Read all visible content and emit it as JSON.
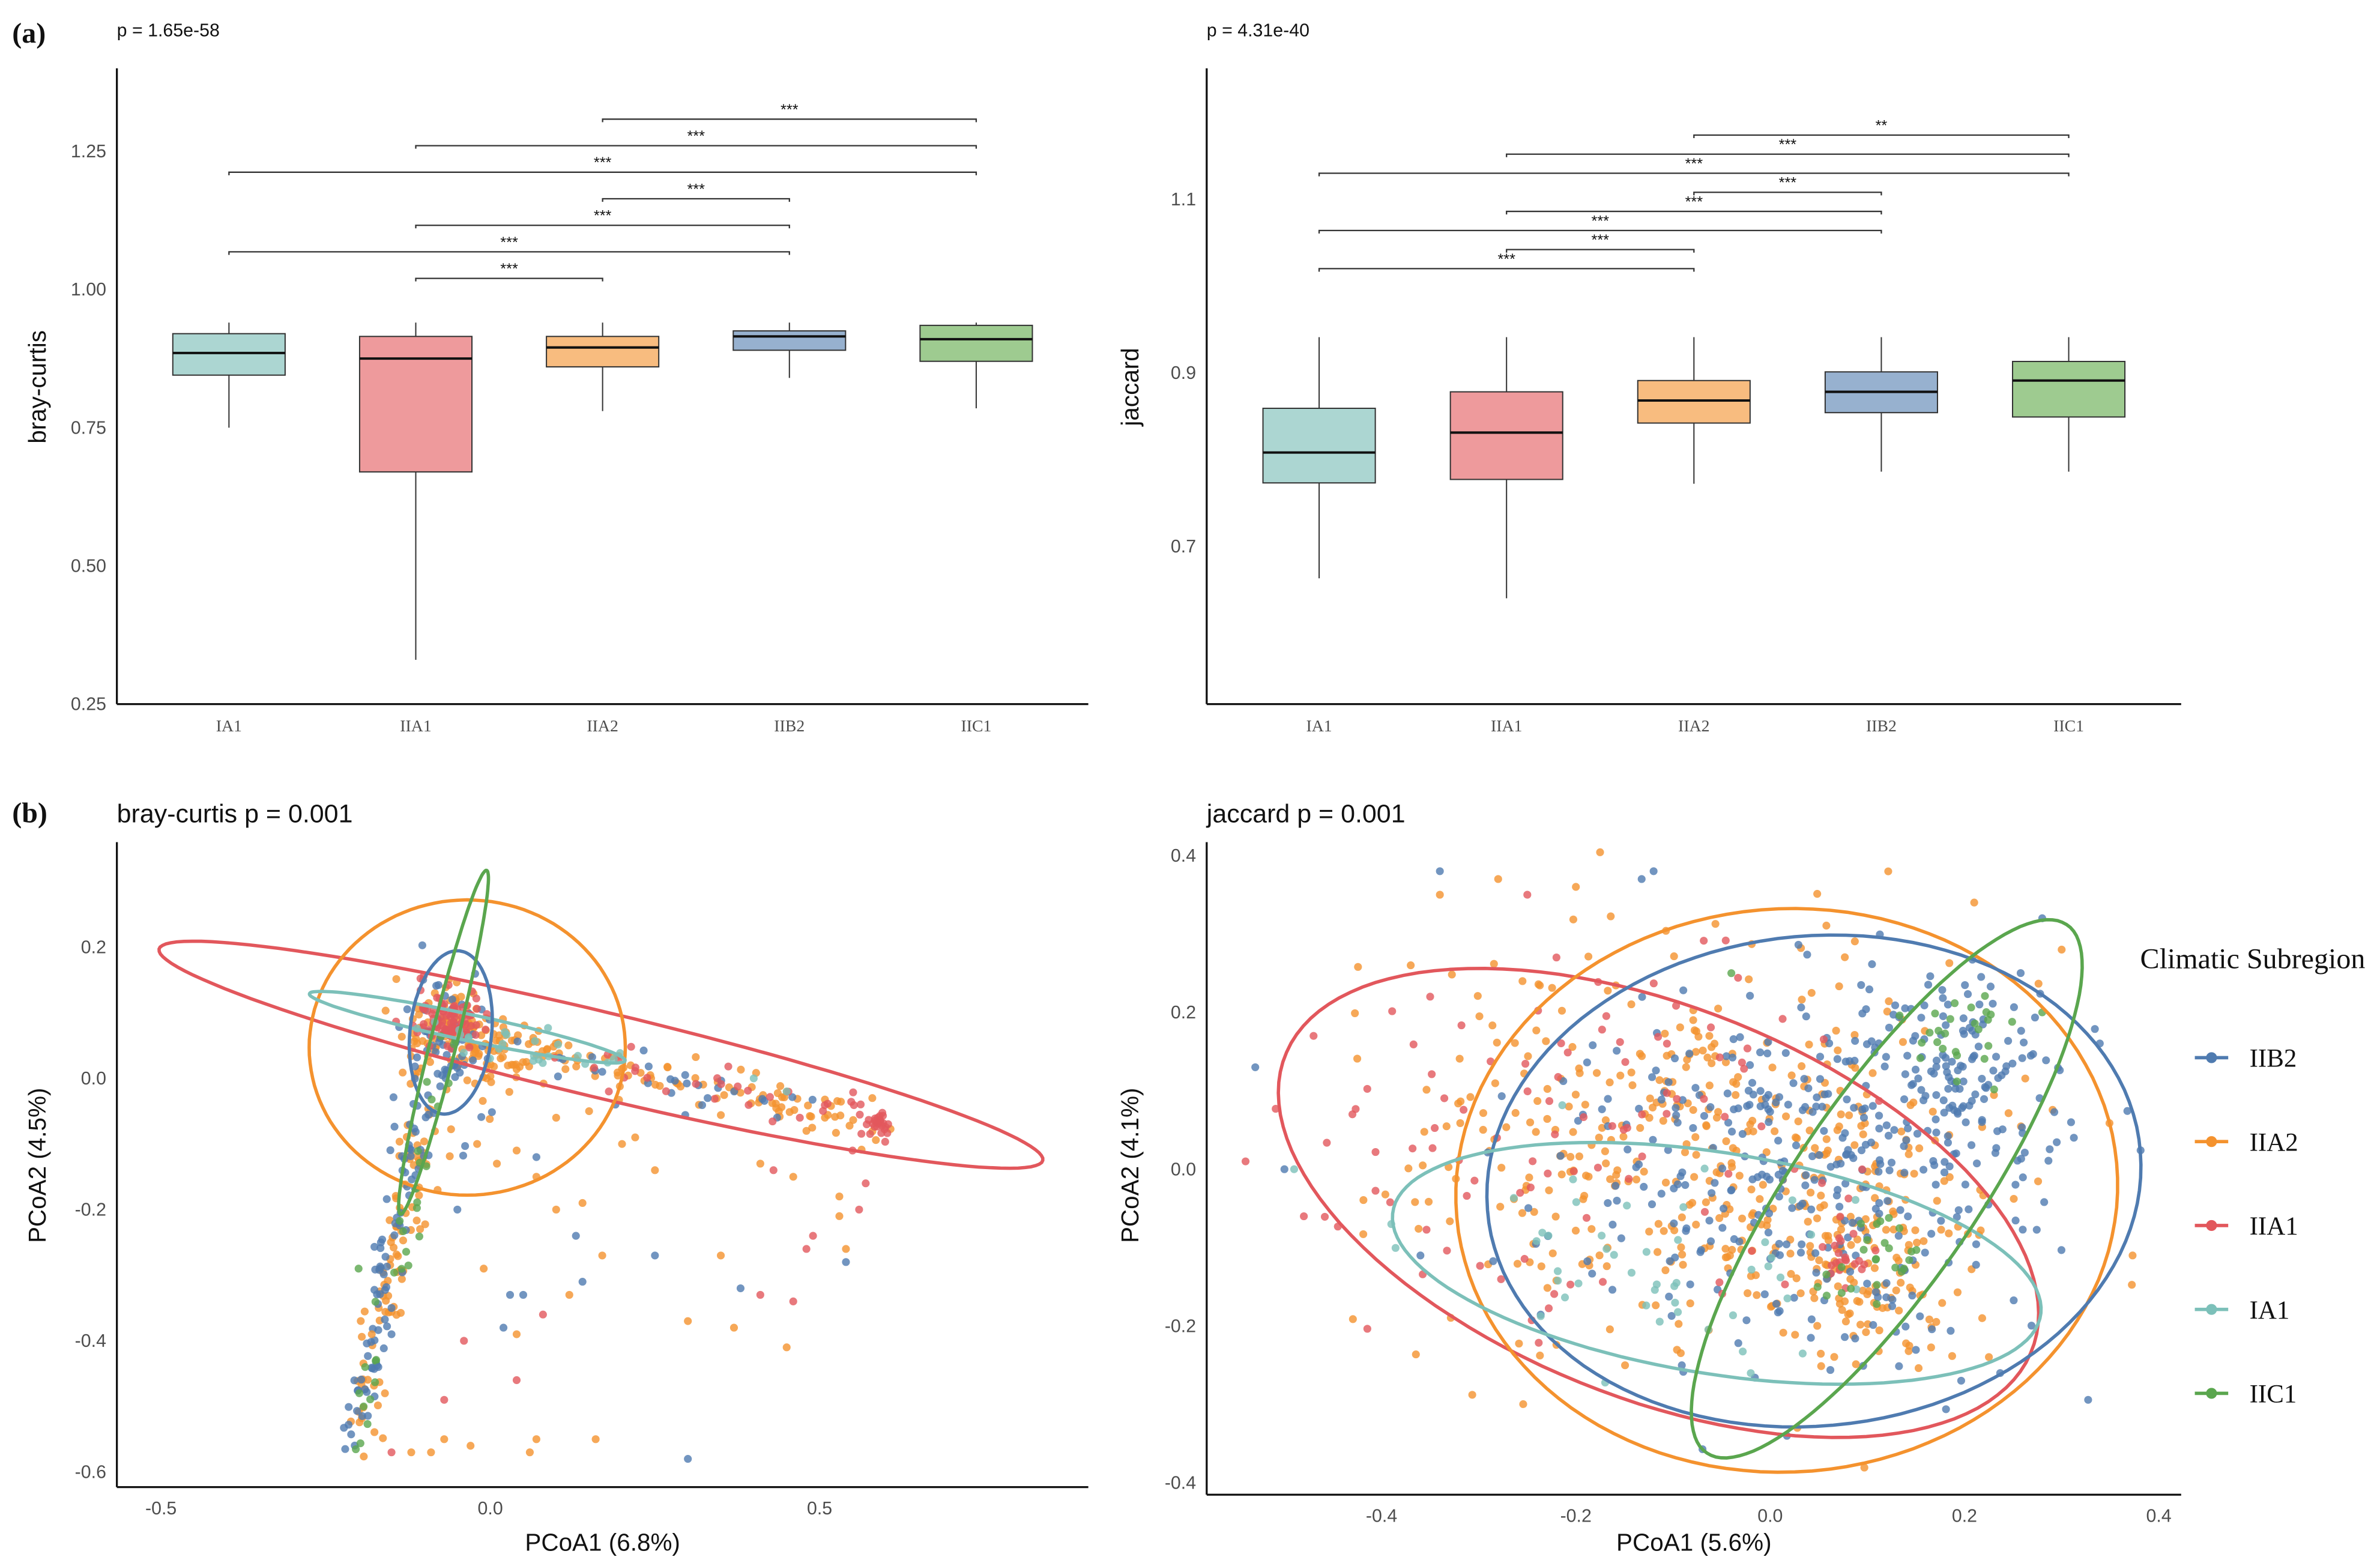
{
  "panels": {
    "a": "(a)",
    "b": "(b)"
  },
  "colors": {
    "IIB2": "#4f7bb0",
    "IIA2": "#f4922e",
    "IIA1": "#e2575c",
    "IA1": "#7cc0b9",
    "IIC1": "#5aa64e"
  },
  "box_fills": {
    "IA1": "#acd6d2",
    "IIA1": "#ee9a9c",
    "IIA2": "#f8bc7f",
    "IIB2": "#97b1cf",
    "IIC1": "#9ecb90"
  },
  "legend": {
    "title": "Climatic Subregion",
    "items": [
      "IIB2",
      "IIA2",
      "IIA1",
      "IA1",
      "IIC1"
    ]
  },
  "chart_data": [
    {
      "type": "box",
      "title": "p = 1.65e-58",
      "ylabel": "bray-curtis",
      "xlabel": "",
      "ylim": [
        0.25,
        1.4
      ],
      "yticks": [
        0.25,
        0.5,
        0.75,
        1.0,
        1.25
      ],
      "ytick_labels": [
        "0.25",
        "0.50",
        "0.75",
        "1.00",
        "1.25"
      ],
      "categories": [
        "IA1",
        "IIA1",
        "IIA2",
        "IIB2",
        "IIC1"
      ],
      "boxes": [
        {
          "group": "IA1",
          "low": 0.75,
          "q1": 0.845,
          "median": 0.885,
          "q3": 0.92,
          "high": 0.94
        },
        {
          "group": "IIA1",
          "low": 0.33,
          "q1": 0.67,
          "median": 0.875,
          "q3": 0.915,
          "high": 0.94
        },
        {
          "group": "IIA2",
          "low": 0.78,
          "q1": 0.86,
          "median": 0.895,
          "q3": 0.915,
          "high": 0.94
        },
        {
          "group": "IIB2",
          "low": 0.84,
          "q1": 0.89,
          "median": 0.915,
          "q3": 0.925,
          "high": 0.94
        },
        {
          "group": "IIC1",
          "low": 0.785,
          "q1": 0.87,
          "median": 0.91,
          "q3": 0.935,
          "high": 0.94
        }
      ],
      "comparisons": [
        {
          "from": "IIA1",
          "to": "IIA2",
          "y": 1.02,
          "label": "***"
        },
        {
          "from": "IA1",
          "to": "IIB2",
          "y": 1.068,
          "label": "***"
        },
        {
          "from": "IIA1",
          "to": "IIB2",
          "y": 1.116,
          "label": "***"
        },
        {
          "from": "IIA2",
          "to": "IIB2",
          "y": 1.164,
          "label": "***"
        },
        {
          "from": "IA1",
          "to": "IIC1",
          "y": 1.212,
          "label": "***"
        },
        {
          "from": "IIA1",
          "to": "IIC1",
          "y": 1.26,
          "label": "***"
        },
        {
          "from": "IIA2",
          "to": "IIC1",
          "y": 1.308,
          "label": "***"
        }
      ]
    },
    {
      "type": "box",
      "title": "p = 4.31e-40",
      "ylabel": "jaccard",
      "xlabel": "",
      "ylim": [
        0.518,
        1.251
      ],
      "yticks": [
        0.7,
        0.9,
        1.1
      ],
      "ytick_labels": [
        "0.7",
        "0.9",
        "1.1"
      ],
      "categories": [
        "IA1",
        "IIA1",
        "IIA2",
        "IIB2",
        "IIC1"
      ],
      "boxes": [
        {
          "group": "IA1",
          "low": 0.663,
          "q1": 0.773,
          "median": 0.808,
          "q3": 0.859,
          "high": 0.941
        },
        {
          "group": "IIA1",
          "low": 0.64,
          "q1": 0.777,
          "median": 0.831,
          "q3": 0.878,
          "high": 0.941
        },
        {
          "group": "IIA2",
          "low": 0.772,
          "q1": 0.842,
          "median": 0.868,
          "q3": 0.891,
          "high": 0.941
        },
        {
          "group": "IIB2",
          "low": 0.786,
          "q1": 0.854,
          "median": 0.878,
          "q3": 0.901,
          "high": 0.941
        },
        {
          "group": "IIC1",
          "low": 0.786,
          "q1": 0.849,
          "median": 0.891,
          "q3": 0.913,
          "high": 0.941
        }
      ],
      "comparisons": [
        {
          "from": "IA1",
          "to": "IIA2",
          "y": 1.02,
          "label": "***"
        },
        {
          "from": "IIA1",
          "to": "IIA2",
          "y": 1.042,
          "label": "***"
        },
        {
          "from": "IA1",
          "to": "IIB2",
          "y": 1.064,
          "label": "***"
        },
        {
          "from": "IIA1",
          "to": "IIB2",
          "y": 1.086,
          "label": "***"
        },
        {
          "from": "IIA2",
          "to": "IIB2",
          "y": 1.108,
          "label": "***"
        },
        {
          "from": "IA1",
          "to": "IIC1",
          "y": 1.13,
          "label": "***"
        },
        {
          "from": "IIA1",
          "to": "IIC1",
          "y": 1.152,
          "label": "***"
        },
        {
          "from": "IIA2",
          "to": "IIC1",
          "y": 1.174,
          "label": "**"
        }
      ]
    },
    {
      "type": "scatter",
      "title": "bray-curtis p = 0.001",
      "xlabel": "PCoA1 (6.8%)",
      "ylabel": "PCoA2 (4.5%)",
      "xlim": [
        -0.567,
        0.908
      ],
      "ylim": [
        -0.623,
        0.36
      ],
      "xticks": [
        -0.5,
        0.0,
        0.5
      ],
      "xtick_labels": [
        "-0.5",
        "0.0",
        "0.5"
      ],
      "yticks": [
        -0.6,
        -0.4,
        -0.2,
        0.0,
        0.2
      ],
      "ytick_labels": [
        "-0.6",
        "-0.4",
        "-0.2",
        "0.0",
        "0.2"
      ],
      "ellipses": [
        {
          "group": "IIA1",
          "cx": 0.168,
          "cy": 0.036,
          "rx": 0.69,
          "ry": 0.065,
          "angle": -13.5
        },
        {
          "group": "IIA2",
          "cx": -0.035,
          "cy": 0.047,
          "rx": 0.24,
          "ry": 0.225,
          "angle": 0
        },
        {
          "group": "IA1",
          "cx": -0.035,
          "cy": 0.078,
          "rx": 0.245,
          "ry": 0.02,
          "angle": -12
        },
        {
          "group": "IIB2",
          "cx": -0.06,
          "cy": 0.07,
          "rx": 0.062,
          "ry": 0.125,
          "angle": -6
        },
        {
          "group": "IIC1",
          "cx": -0.071,
          "cy": 0.055,
          "rx": 0.27,
          "ry": 0.02,
          "angle": 76
        }
      ],
      "clusters": [
        {
          "group": "IIA2",
          "kind": "blob",
          "c": [
            -0.05,
            0.06
          ],
          "sd": [
            0.05,
            0.04
          ],
          "n": 130
        },
        {
          "group": "IIA2",
          "kind": "line",
          "from": [
            0.0,
            0.05
          ],
          "to": [
            0.58,
            -0.065
          ],
          "sd": 0.018,
          "n": 110
        },
        {
          "group": "IIA2",
          "kind": "line",
          "from": [
            -0.1,
            -0.05
          ],
          "to": [
            -0.2,
            -0.56
          ],
          "sd": 0.018,
          "n": 90
        },
        {
          "group": "IIB2",
          "kind": "blob",
          "c": [
            -0.07,
            0.05
          ],
          "sd": [
            0.03,
            0.05
          ],
          "n": 70
        },
        {
          "group": "IIB2",
          "kind": "line",
          "from": [
            -0.11,
            -0.05
          ],
          "to": [
            -0.21,
            -0.56
          ],
          "sd": 0.014,
          "n": 80
        },
        {
          "group": "IIB2",
          "kind": "line",
          "from": [
            0.0,
            0.05
          ],
          "to": [
            0.58,
            -0.07
          ],
          "sd": 0.015,
          "n": 25
        },
        {
          "group": "IIA1",
          "kind": "blob",
          "c": [
            -0.06,
            0.09
          ],
          "sd": [
            0.025,
            0.02
          ],
          "n": 90
        },
        {
          "group": "IIA1",
          "kind": "blob",
          "c": [
            0.59,
            -0.07
          ],
          "sd": [
            0.012,
            0.01
          ],
          "n": 25
        },
        {
          "group": "IIA1",
          "kind": "line",
          "from": [
            0.05,
            0.05
          ],
          "to": [
            0.58,
            -0.06
          ],
          "sd": 0.015,
          "n": 30
        },
        {
          "group": "IA1",
          "kind": "line",
          "from": [
            -0.1,
            0.08
          ],
          "to": [
            0.2,
            0.02
          ],
          "sd": 0.012,
          "n": 25
        },
        {
          "group": "IIC1",
          "kind": "line",
          "from": [
            -0.06,
            0.1
          ],
          "to": [
            -0.2,
            -0.55
          ],
          "sd": 0.012,
          "n": 30
        }
      ],
      "points": {
        "IIA2": [
          [
            0.04,
            -0.39
          ],
          [
            0.17,
            -0.27
          ],
          [
            0.16,
            -0.55
          ],
          [
            0.3,
            -0.37
          ],
          [
            0.35,
            -0.27
          ],
          [
            0.37,
            -0.38
          ],
          [
            0.45,
            -0.41
          ],
          [
            0.46,
            -0.15
          ],
          [
            0.54,
            -0.26
          ],
          [
            0.12,
            -0.33
          ],
          [
            -0.01,
            -0.29
          ],
          [
            0.07,
            -0.55
          ],
          [
            0.06,
            -0.57
          ],
          [
            -0.03,
            -0.56
          ],
          [
            -0.09,
            -0.57
          ],
          [
            -0.07,
            -0.55
          ],
          [
            -0.12,
            -0.57
          ],
          [
            -0.16,
            -0.48
          ],
          [
            -0.18,
            -0.39
          ],
          [
            0.1,
            -0.2
          ],
          [
            0.14,
            -0.19
          ],
          [
            0.25,
            -0.14
          ],
          [
            0.2,
            -0.1
          ],
          [
            0.1,
            -0.06
          ],
          [
            0.01,
            -0.13
          ],
          [
            -0.02,
            -0.1
          ],
          [
            0.07,
            -0.15
          ],
          [
            0.41,
            -0.13
          ],
          [
            0.48,
            -0.08
          ],
          [
            0.53,
            -0.21
          ],
          [
            0.53,
            -0.18
          ],
          [
            0.22,
            -0.09
          ],
          [
            0.04,
            -0.11
          ],
          [
            -0.08,
            -0.17
          ],
          [
            0.15,
            -0.05
          ]
        ],
        "IIA1": [
          [
            0.41,
            -0.33
          ],
          [
            0.46,
            -0.34
          ],
          [
            0.49,
            -0.24
          ],
          [
            0.48,
            -0.26
          ],
          [
            0.04,
            -0.46
          ],
          [
            -0.07,
            -0.49
          ],
          [
            0.08,
            -0.36
          ],
          [
            -0.04,
            -0.4
          ],
          [
            0.56,
            -0.2
          ],
          [
            0.57,
            -0.16
          ],
          [
            0.55,
            -0.11
          ],
          [
            0.43,
            -0.14
          ],
          [
            -0.15,
            -0.57
          ],
          [
            0.18,
            -0.02
          ],
          [
            0.47,
            -0.06
          ]
        ],
        "IIB2": [
          [
            0.3,
            -0.58
          ],
          [
            0.05,
            -0.33
          ],
          [
            0.03,
            -0.33
          ],
          [
            0.14,
            -0.31
          ],
          [
            0.25,
            -0.27
          ],
          [
            0.38,
            -0.32
          ],
          [
            0.54,
            -0.28
          ],
          [
            0.02,
            -0.38
          ],
          [
            -0.17,
            -0.44
          ],
          [
            -0.15,
            -0.39
          ],
          [
            0.13,
            -0.24
          ],
          [
            0.07,
            -0.12
          ],
          [
            0.33,
            -0.03
          ],
          [
            0.19,
            -0.04
          ],
          [
            0.17,
            0.01
          ],
          [
            -0.05,
            -0.2
          ],
          [
            -0.15,
            -0.35
          ]
        ],
        "IA1": [
          [
            0.4,
            0.0
          ],
          [
            0.45,
            -0.02
          ]
        ],
        "IIC1": [
          [
            -0.19,
            -0.44
          ],
          [
            -0.2,
            -0.29
          ]
        ]
      }
    },
    {
      "type": "scatter",
      "title": "jaccard p = 0.001",
      "xlabel": "PCoA1 (5.6%)",
      "ylabel": "PCoA2 (4.1%)",
      "xlim": [
        -0.58,
        0.423
      ],
      "ylim": [
        -0.415,
        0.417
      ],
      "xticks": [
        -0.4,
        -0.2,
        0.0,
        0.2,
        0.4
      ],
      "xtick_labels": [
        "-0.4",
        "-0.2",
        "0.0",
        "0.2",
        "0.4"
      ],
      "yticks": [
        -0.4,
        -0.2,
        0.0,
        0.2,
        0.4
      ],
      "ytick_labels": [
        "-0.4",
        "-0.2",
        "0.0",
        "0.2",
        "0.4"
      ],
      "ellipses": [
        {
          "group": "IIA1",
          "cx": -0.115,
          "cy": -0.043,
          "rx": 0.43,
          "ry": 0.24,
          "angle": -30
        },
        {
          "group": "IIA2",
          "cx": 0.017,
          "cy": -0.027,
          "rx": 0.34,
          "ry": 0.36,
          "angle": -10
        },
        {
          "group": "IIB2",
          "cx": 0.045,
          "cy": -0.015,
          "rx": 0.34,
          "ry": 0.31,
          "angle": 20
        },
        {
          "group": "IA1",
          "cx": -0.055,
          "cy": -0.12,
          "rx": 0.34,
          "ry": 0.14,
          "angle": -12
        },
        {
          "group": "IIC1",
          "cx": 0.12,
          "cy": -0.025,
          "rx": 0.385,
          "ry": 0.1,
          "angle": 62
        }
      ],
      "clusters": [
        {
          "group": "IIA2",
          "kind": "blob",
          "c": [
            -0.06,
            0.03
          ],
          "sd": [
            0.15,
            0.13
          ],
          "n": 420
        },
        {
          "group": "IIA2",
          "kind": "blob",
          "c": [
            0.1,
            -0.13
          ],
          "sd": [
            0.05,
            0.05
          ],
          "n": 110
        },
        {
          "group": "IIB2",
          "kind": "blob",
          "c": [
            0.04,
            0.0
          ],
          "sd": [
            0.13,
            0.12
          ],
          "n": 380
        },
        {
          "group": "IIB2",
          "kind": "blob",
          "c": [
            0.2,
            0.15
          ],
          "sd": [
            0.045,
            0.05
          ],
          "n": 90
        },
        {
          "group": "IIA1",
          "kind": "blob",
          "c": [
            -0.2,
            0.02
          ],
          "sd": [
            0.15,
            0.12
          ],
          "n": 95
        },
        {
          "group": "IIA1",
          "kind": "blob",
          "c": [
            0.08,
            -0.12
          ],
          "sd": [
            0.02,
            0.02
          ],
          "n": 20
        },
        {
          "group": "IA1",
          "kind": "blob",
          "c": [
            -0.1,
            -0.11
          ],
          "sd": [
            0.1,
            0.07
          ],
          "n": 45
        },
        {
          "group": "IIC1",
          "kind": "blob",
          "c": [
            0.2,
            0.17
          ],
          "sd": [
            0.03,
            0.03
          ],
          "n": 25
        },
        {
          "group": "IIC1",
          "kind": "blob",
          "c": [
            0.1,
            -0.12
          ],
          "sd": [
            0.03,
            0.03
          ],
          "n": 25
        }
      ],
      "points": {
        "IIA1": [
          [
            -0.54,
            0.01
          ],
          [
            -0.47,
            0.17
          ],
          [
            -0.48,
            -0.06
          ],
          [
            -0.43,
            0.07
          ],
          [
            -0.35,
            0.22
          ],
          [
            -0.25,
            0.35
          ],
          [
            -0.22,
            0.27
          ]
        ],
        "IIB2": [
          [
            -0.53,
            0.13
          ],
          [
            -0.34,
            0.38
          ],
          [
            -0.12,
            0.38
          ],
          [
            0.28,
            0.32
          ],
          [
            -0.5,
            0.0
          ],
          [
            -0.36,
            -0.11
          ]
        ],
        "IIA2": [
          [
            -0.34,
            0.35
          ],
          [
            -0.28,
            0.37
          ],
          [
            -0.2,
            0.36
          ],
          [
            -0.37,
            0.26
          ],
          [
            0.21,
            0.34
          ],
          [
            0.3,
            0.28
          ]
        ],
        "IA1": [
          [
            -0.49,
            0.0
          ],
          [
            -0.39,
            -0.07
          ],
          [
            -0.02,
            -0.26
          ]
        ],
        "IIC1": [
          [
            -0.04,
            0.25
          ],
          [
            0.28,
            0.2
          ]
        ]
      }
    }
  ]
}
